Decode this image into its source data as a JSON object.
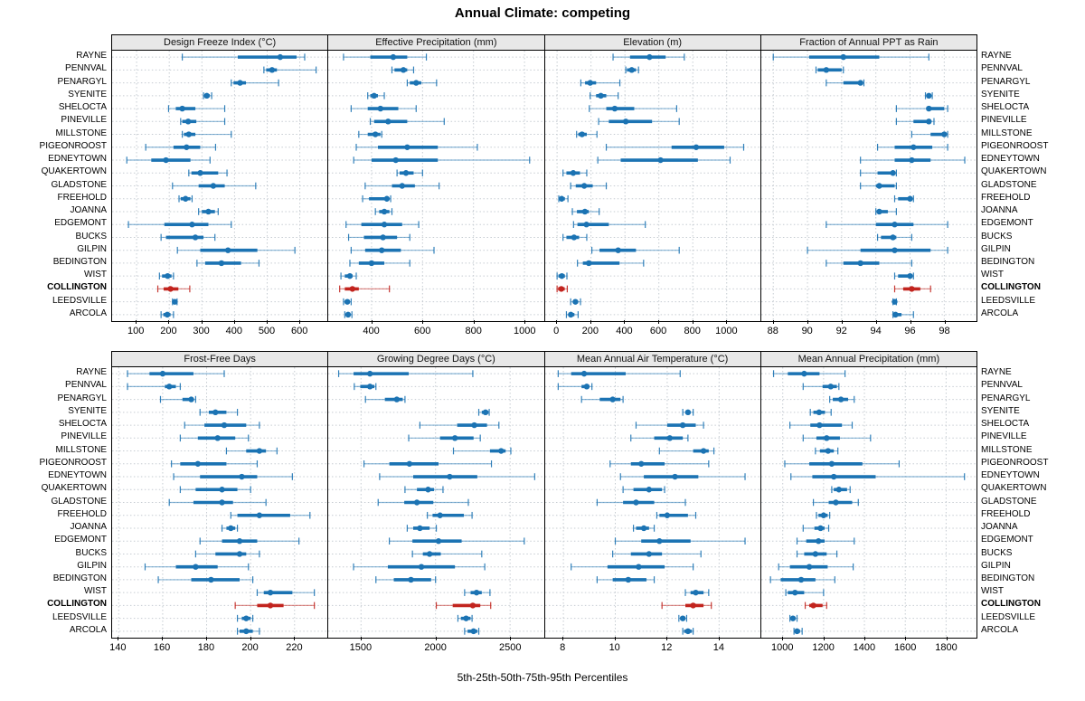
{
  "title": "Annual Climate: competing",
  "caption": "5th-25th-50th-75th-95th Percentiles",
  "highlight_site": "COLLINGTON",
  "colors": {
    "series": "#1b73b3",
    "highlight": "#c2241e",
    "grid": "#c6ccd2",
    "header_bg": "#e8e8e8",
    "border": "#000000"
  },
  "sites": [
    "RAYNE",
    "PENNVAL",
    "PENARGYL",
    "SYENITE",
    "SHELOCTA",
    "PINEVILLE",
    "MILLSTONE",
    "PIGEONROOST",
    "EDNEYTOWN",
    "QUAKERTOWN",
    "GLADSTONE",
    "FREEHOLD",
    "JOANNA",
    "EDGEMONT",
    "BUCKS",
    "GILPIN",
    "BEDINGTON",
    "WIST",
    "COLLINGTON",
    "LEEDSVILLE",
    "ARCOLA"
  ],
  "percentiles": [
    5,
    25,
    50,
    75,
    95
  ],
  "chart_data": [
    {
      "type": "percentile-dotplot",
      "title": "Design Freeze Index (°C)",
      "row": 0,
      "col": 0,
      "ticks": [
        100,
        200,
        300,
        400,
        500,
        600
      ],
      "domain": [
        25,
        685
      ],
      "values": [
        [
          240,
          410,
          540,
          590,
          615
        ],
        [
          490,
          497,
          515,
          530,
          650
        ],
        [
          390,
          397,
          417,
          435,
          535
        ],
        [
          305,
          308,
          315,
          324,
          330
        ],
        [
          198,
          220,
          240,
          280,
          370
        ],
        [
          235,
          240,
          258,
          283,
          370
        ],
        [
          240,
          245,
          260,
          280,
          390
        ],
        [
          128,
          213,
          253,
          295,
          342
        ],
        [
          70,
          145,
          190,
          265,
          325
        ],
        [
          260,
          268,
          295,
          350,
          377
        ],
        [
          210,
          290,
          335,
          370,
          465
        ],
        [
          230,
          235,
          250,
          265,
          270
        ],
        [
          290,
          300,
          320,
          340,
          350
        ],
        [
          75,
          185,
          270,
          320,
          390
        ],
        [
          175,
          190,
          280,
          305,
          340
        ],
        [
          225,
          295,
          380,
          470,
          585
        ],
        [
          285,
          310,
          360,
          420,
          475
        ],
        [
          170,
          178,
          195,
          207,
          213
        ],
        [
          165,
          183,
          204,
          228,
          263
        ],
        [
          210,
          213,
          217,
          221,
          224
        ],
        [
          175,
          182,
          194,
          204,
          213
        ]
      ]
    },
    {
      "type": "percentile-dotplot",
      "title": "Effective Precipitation (mm)",
      "row": 0,
      "col": 1,
      "ticks": [
        400,
        600,
        800,
        1000
      ],
      "domain": [
        230,
        1075
      ],
      "values": [
        [
          290,
          395,
          485,
          540,
          615
        ],
        [
          480,
          490,
          525,
          540,
          565
        ],
        [
          540,
          550,
          575,
          595,
          655
        ],
        [
          385,
          395,
          410,
          425,
          450
        ],
        [
          320,
          385,
          435,
          505,
          575
        ],
        [
          395,
          410,
          465,
          540,
          685
        ],
        [
          350,
          385,
          415,
          435,
          440
        ],
        [
          340,
          425,
          540,
          660,
          815
        ],
        [
          330,
          400,
          495,
          660,
          1020
        ],
        [
          500,
          510,
          535,
          565,
          600
        ],
        [
          375,
          480,
          520,
          570,
          665
        ],
        [
          365,
          390,
          460,
          470,
          475
        ],
        [
          415,
          430,
          450,
          470,
          480
        ],
        [
          300,
          360,
          450,
          520,
          585
        ],
        [
          310,
          370,
          445,
          500,
          550
        ],
        [
          320,
          375,
          440,
          515,
          645
        ],
        [
          315,
          350,
          400,
          450,
          550
        ],
        [
          280,
          295,
          315,
          325,
          340
        ],
        [
          275,
          295,
          325,
          350,
          470
        ],
        [
          290,
          295,
          305,
          315,
          320
        ],
        [
          295,
          300,
          308,
          317,
          323
        ]
      ]
    },
    {
      "type": "percentile-dotplot",
      "title": "Elevation (m)",
      "row": 0,
      "col": 2,
      "ticks": [
        0,
        200,
        400,
        600,
        800,
        1000
      ],
      "domain": [
        -70,
        1200
      ],
      "values": [
        [
          330,
          430,
          545,
          640,
          750
        ],
        [
          405,
          412,
          440,
          465,
          480
        ],
        [
          140,
          165,
          195,
          230,
          370
        ],
        [
          195,
          230,
          258,
          290,
          360
        ],
        [
          190,
          290,
          340,
          455,
          705
        ],
        [
          245,
          305,
          405,
          560,
          720
        ],
        [
          115,
          125,
          147,
          175,
          235
        ],
        [
          290,
          675,
          820,
          985,
          1100
        ],
        [
          240,
          375,
          610,
          830,
          1020
        ],
        [
          35,
          55,
          95,
          135,
          175
        ],
        [
          80,
          110,
          160,
          210,
          290
        ],
        [
          10,
          15,
          27,
          46,
          64
        ],
        [
          90,
          117,
          164,
          187,
          248
        ],
        [
          97,
          120,
          173,
          305,
          520
        ],
        [
          35,
          55,
          100,
          130,
          175
        ],
        [
          205,
          250,
          360,
          465,
          720
        ],
        [
          120,
          152,
          187,
          368,
          510
        ],
        [
          0,
          8,
          28,
          46,
          58
        ],
        [
          0,
          6,
          25,
          45,
          60
        ],
        [
          80,
          95,
          108,
          124,
          138
        ],
        [
          55,
          67,
          81,
          102,
          124
        ]
      ]
    },
    {
      "type": "percentile-dotplot",
      "title": "Fraction of Annual PPT as Rain",
      "row": 0,
      "col": 3,
      "ticks": [
        88,
        90,
        92,
        94,
        96,
        98
      ],
      "domain": [
        87.3,
        99.9
      ],
      "values": [
        [
          88.0,
          90.1,
          92.1,
          94.2,
          97.1
        ],
        [
          90.5,
          90.6,
          91.1,
          92.0,
          92.1
        ],
        [
          91.1,
          92.1,
          93.1,
          93.2,
          93.3
        ],
        [
          96.9,
          97.0,
          97.1,
          97.2,
          97.3
        ],
        [
          95.2,
          97.0,
          97.1,
          98.0,
          98.2
        ],
        [
          95.2,
          96.2,
          97.1,
          97.2,
          97.4
        ],
        [
          96.1,
          97.2,
          98.0,
          98.1,
          98.2
        ],
        [
          94.1,
          95.1,
          96.2,
          97.3,
          98.2
        ],
        [
          93.1,
          95.1,
          96.1,
          97.2,
          99.2
        ],
        [
          93.1,
          94.1,
          95.0,
          95.1,
          95.2
        ],
        [
          93.1,
          94.0,
          94.2,
          95.1,
          95.2
        ],
        [
          95.1,
          95.3,
          96.0,
          96.1,
          96.2
        ],
        [
          94.0,
          94.1,
          94.2,
          94.7,
          95.2
        ],
        [
          91.1,
          94.0,
          95.1,
          96.2,
          98.2
        ],
        [
          94.1,
          94.3,
          95.0,
          95.2,
          96.1
        ],
        [
          90.0,
          93.1,
          95.1,
          97.2,
          98.2
        ],
        [
          91.1,
          92.1,
          93.1,
          94.2,
          96.1
        ],
        [
          95.1,
          95.3,
          96.0,
          96.1,
          96.2
        ],
        [
          95.1,
          95.6,
          96.1,
          96.6,
          97.2
        ],
        [
          95.0,
          95.05,
          95.1,
          95.15,
          95.2
        ],
        [
          95.0,
          95.1,
          95.15,
          95.5,
          96.2
        ]
      ]
    },
    {
      "type": "percentile-dotplot",
      "title": "Frost-Free Days",
      "row": 1,
      "col": 0,
      "ticks": [
        140,
        160,
        180,
        200,
        220
      ],
      "domain": [
        137,
        235
      ],
      "values": [
        [
          144,
          154,
          160,
          174,
          188
        ],
        [
          144,
          161,
          163,
          166,
          168
        ],
        [
          159,
          169,
          173,
          174,
          175
        ],
        [
          177,
          181,
          184,
          189,
          194
        ],
        [
          170,
          179,
          188,
          198,
          204
        ],
        [
          168,
          176,
          185,
          193,
          199
        ],
        [
          189,
          198,
          204,
          207,
          212
        ],
        [
          164,
          168,
          176,
          189,
          203
        ],
        [
          165,
          177,
          196,
          203,
          219
        ],
        [
          168,
          175,
          187,
          194,
          200
        ],
        [
          163,
          174,
          187,
          192,
          207
        ],
        [
          191,
          194,
          204,
          218,
          227
        ],
        [
          187,
          189,
          191,
          193,
          194
        ],
        [
          177,
          187,
          195,
          203,
          222
        ],
        [
          175,
          184,
          195,
          198,
          204
        ],
        [
          152,
          166,
          175,
          185,
          199
        ],
        [
          158,
          173,
          182,
          195,
          201
        ],
        [
          203,
          206,
          209,
          219,
          229
        ],
        [
          193,
          203,
          209,
          215,
          229
        ],
        [
          194,
          196,
          198,
          200,
          201
        ],
        [
          194,
          195,
          198,
          201,
          204
        ]
      ]
    },
    {
      "type": "percentile-dotplot",
      "title": "Growing Degree Days (°C)",
      "row": 1,
      "col": 1,
      "ticks": [
        1500,
        2000,
        2500
      ],
      "domain": [
        1280,
        2725
      ],
      "values": [
        [
          1350,
          1450,
          1560,
          1820,
          2250
        ],
        [
          1455,
          1495,
          1560,
          1590,
          1600
        ],
        [
          1530,
          1660,
          1740,
          1780,
          1795
        ],
        [
          2290,
          2310,
          2335,
          2355,
          2360
        ],
        [
          1895,
          2145,
          2260,
          2345,
          2425
        ],
        [
          1820,
          2030,
          2130,
          2255,
          2300
        ],
        [
          2120,
          2365,
          2440,
          2470,
          2505
        ],
        [
          1520,
          1690,
          1825,
          2020,
          2375
        ],
        [
          1625,
          1850,
          2095,
          2280,
          2665
        ],
        [
          1795,
          1875,
          1950,
          1990,
          2050
        ],
        [
          1615,
          1790,
          1875,
          1985,
          2220
        ],
        [
          1945,
          1980,
          2030,
          2190,
          2245
        ],
        [
          1810,
          1850,
          1895,
          1960,
          2005
        ],
        [
          1690,
          1845,
          2020,
          2175,
          2595
        ],
        [
          1845,
          1915,
          1960,
          2035,
          2310
        ],
        [
          1450,
          1680,
          1905,
          2130,
          2330
        ],
        [
          1600,
          1720,
          1835,
          1970,
          2000
        ],
        [
          2195,
          2235,
          2275,
          2310,
          2365
        ],
        [
          2005,
          2115,
          2250,
          2300,
          2370
        ],
        [
          2150,
          2170,
          2205,
          2235,
          2245
        ],
        [
          2195,
          2215,
          2255,
          2280,
          2290
        ]
      ]
    },
    {
      "type": "percentile-dotplot",
      "title": "Mean Annual Air Temperature (°C)",
      "row": 1,
      "col": 2,
      "ticks": [
        8,
        10,
        12,
        14
      ],
      "domain": [
        7.3,
        15.6
      ],
      "values": [
        [
          7.8,
          8.3,
          8.8,
          10.4,
          12.5
        ],
        [
          7.8,
          8.7,
          8.9,
          9.0,
          9.1
        ],
        [
          8.7,
          9.4,
          9.9,
          10.2,
          10.3
        ],
        [
          12.6,
          12.7,
          12.8,
          12.9,
          13.0
        ],
        [
          10.8,
          12.0,
          12.6,
          13.1,
          13.4
        ],
        [
          10.6,
          11.5,
          12.1,
          12.6,
          12.8
        ],
        [
          11.7,
          13.0,
          13.4,
          13.6,
          13.8
        ],
        [
          9.8,
          10.6,
          11.0,
          11.9,
          13.6
        ],
        [
          10.2,
          11.1,
          12.3,
          13.2,
          15.0
        ],
        [
          10.3,
          10.7,
          11.3,
          11.8,
          11.9
        ],
        [
          9.3,
          10.3,
          10.8,
          11.5,
          12.7
        ],
        [
          11.6,
          11.7,
          12.0,
          12.8,
          13.1
        ],
        [
          10.7,
          10.8,
          11.1,
          11.3,
          11.5
        ],
        [
          10.0,
          11.0,
          11.7,
          12.9,
          15.0
        ],
        [
          9.9,
          10.6,
          11.3,
          11.8,
          13.3
        ],
        [
          8.3,
          9.7,
          10.9,
          11.9,
          13.0
        ],
        [
          9.3,
          9.9,
          10.5,
          11.2,
          11.5
        ],
        [
          12.7,
          12.9,
          13.1,
          13.4,
          13.6
        ],
        [
          11.8,
          12.7,
          13.0,
          13.4,
          13.7
        ],
        [
          12.45,
          12.5,
          12.6,
          12.7,
          12.75
        ],
        [
          12.6,
          12.65,
          12.8,
          12.95,
          13.0
        ]
      ]
    },
    {
      "type": "percentile-dotplot",
      "title": "Mean Annual Precipitation (mm)",
      "row": 1,
      "col": 3,
      "ticks": [
        1000,
        1200,
        1400,
        1600,
        1800
      ],
      "domain": [
        895,
        1950
      ],
      "values": [
        [
          955,
          1025,
          1105,
          1180,
          1305
        ],
        [
          1100,
          1195,
          1235,
          1265,
          1275
        ],
        [
          1230,
          1245,
          1285,
          1320,
          1350
        ],
        [
          1135,
          1150,
          1178,
          1207,
          1237
        ],
        [
          1035,
          1135,
          1180,
          1290,
          1340
        ],
        [
          1100,
          1165,
          1215,
          1280,
          1430
        ],
        [
          1160,
          1182,
          1222,
          1250,
          1270
        ],
        [
          1010,
          1130,
          1240,
          1390,
          1570
        ],
        [
          1040,
          1145,
          1250,
          1455,
          1890
        ],
        [
          1240,
          1250,
          1275,
          1315,
          1330
        ],
        [
          1150,
          1225,
          1260,
          1340,
          1370
        ],
        [
          1165,
          1175,
          1200,
          1220,
          1230
        ],
        [
          1100,
          1155,
          1185,
          1205,
          1225
        ],
        [
          1070,
          1115,
          1175,
          1205,
          1350
        ],
        [
          1070,
          1105,
          1160,
          1215,
          1265
        ],
        [
          980,
          1035,
          1130,
          1220,
          1345
        ],
        [
          940,
          990,
          1090,
          1160,
          1255
        ],
        [
          1015,
          1025,
          1060,
          1105,
          1200
        ],
        [
          1110,
          1130,
          1150,
          1195,
          1215
        ],
        [
          1035,
          1040,
          1050,
          1062,
          1070
        ],
        [
          1055,
          1060,
          1070,
          1085,
          1095
        ]
      ]
    }
  ]
}
